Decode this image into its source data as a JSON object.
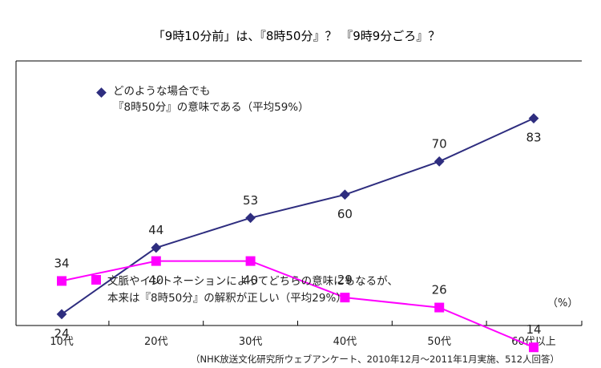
{
  "chart_data": {
    "type": "line",
    "title": "「9時10分前」は、『8時50分』？ 『9時9分ごろ』？",
    "categories": [
      "10代",
      "20代",
      "30代",
      "40代",
      "50代",
      "60代以上"
    ],
    "ylim": [
      0,
      100
    ],
    "grid": false,
    "unit_label": "（%）",
    "note": "（NHK放送文化研究所ウェブアンケート、2010年12月～2011年1月実施、512人回答）",
    "series": [
      {
        "name_lines": [
          "どのような場合でも",
          "『8時50分』の意味である（平均59%）"
        ],
        "values": [
          24,
          44,
          53,
          60,
          70,
          83
        ],
        "color": "#2e2d7f",
        "marker": "diamond",
        "label_pos": [
          "below",
          "above",
          "above",
          "below",
          "above",
          "below"
        ]
      },
      {
        "name_lines": [
          "文脈やイントネーションによってどちらの意味にもなるが、",
          "本来は『8時50分』の解釈が正しい（平均29%）"
        ],
        "values": [
          34,
          40,
          40,
          29,
          26,
          14
        ],
        "color": "#ff00ff",
        "marker": "square",
        "label_pos": [
          "above",
          "below",
          "below",
          "above",
          "above",
          "above"
        ]
      }
    ]
  }
}
